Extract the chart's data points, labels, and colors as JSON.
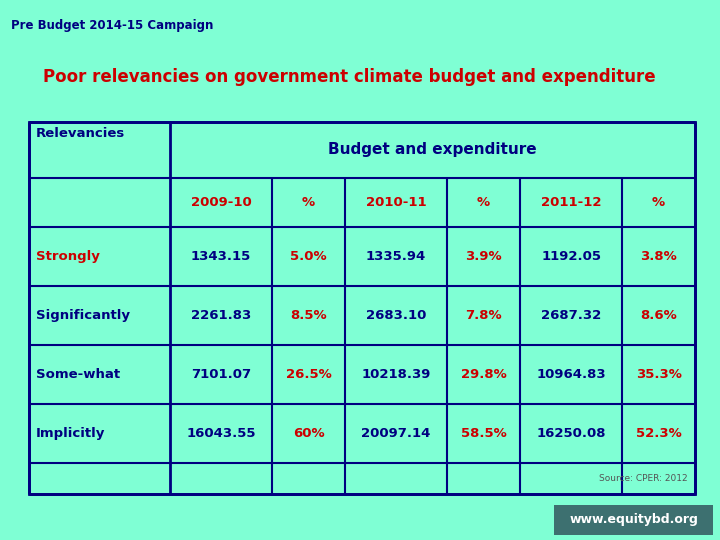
{
  "title_top": "Pre Budget 2014-15 Campaign",
  "title_top_color": "#000080",
  "title_main": "Poor relevancies on government climate budget and expenditure",
  "title_main_color": "#cc0000",
  "background_color": "#7fffd4",
  "table_bg": "#7fffd4",
  "header1": "Relevancies",
  "header2": "Budget and expenditure",
  "header_color": "#000080",
  "col_headers": [
    "2009-10",
    "%",
    "2010-11",
    "%",
    "2011-12",
    "%"
  ],
  "col_header_color": "#cc0000",
  "row_labels": [
    "Strongly",
    "Significantly",
    "Some-what",
    "Implicitly"
  ],
  "row_label_colors": [
    "#cc0000",
    "#000080",
    "#000080",
    "#000080"
  ],
  "data_color": "#000080",
  "pct_color": "#cc0000",
  "rows": [
    [
      "1343.15",
      "5.0%",
      "1335.94",
      "3.9%",
      "1192.05",
      "3.8%"
    ],
    [
      "2261.83",
      "8.5%",
      "2683.10",
      "7.8%",
      "2687.32",
      "8.6%"
    ],
    [
      "7101.07",
      "26.5%",
      "10218.39",
      "29.8%",
      "10964.83",
      "35.3%"
    ],
    [
      "16043.55",
      "60%",
      "20097.14",
      "58.5%",
      "16250.08",
      "52.3%"
    ]
  ],
  "source_text": "Source: CPER: 2012",
  "footer_text": "www.equitybd.org",
  "footer_bg": "#3d7070",
  "footer_text_color": "#ffffff",
  "border_color": "#000080"
}
